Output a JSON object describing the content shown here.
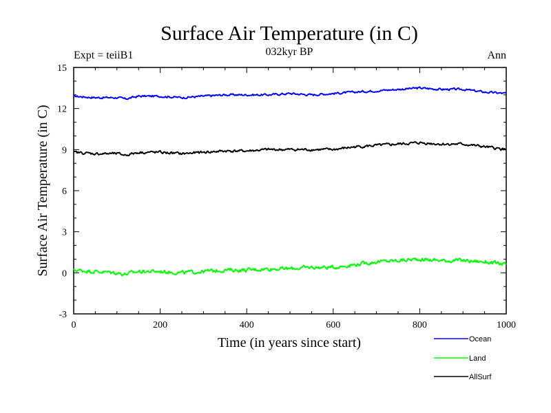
{
  "chart_data": {
    "type": "line",
    "title": "Surface Air Temperature (in C)",
    "subtitle": "032kyr BP",
    "label_left": "Expt = teiiB1",
    "label_right": "Ann",
    "xlabel": "Time (in years since start)",
    "ylabel": "Surface Air Temperature (in C)",
    "xlim": [
      0,
      1000
    ],
    "ylim": [
      -3,
      15
    ],
    "x_ticks": [
      "0",
      "200",
      "400",
      "600",
      "800",
      "1000"
    ],
    "y_ticks": [
      "-3",
      "0",
      "3",
      "6",
      "9",
      "12",
      "15"
    ],
    "grid": false,
    "legend_position": "bottom-right, below plot",
    "series": [
      {
        "name": "Ocean",
        "color": "#0000ff",
        "x": [
          0,
          50,
          100,
          120,
          150,
          200,
          250,
          300,
          350,
          400,
          450,
          500,
          550,
          600,
          650,
          700,
          750,
          800,
          850,
          900,
          950,
          1000
        ],
        "values": [
          12.9,
          12.8,
          12.8,
          12.7,
          12.9,
          12.9,
          12.8,
          12.9,
          13.0,
          13.0,
          13.0,
          13.1,
          13.0,
          13.1,
          13.2,
          13.3,
          13.4,
          13.5,
          13.4,
          13.4,
          13.2,
          13.1
        ]
      },
      {
        "name": "Land",
        "color": "#00ff00",
        "x": [
          0,
          50,
          100,
          120,
          150,
          200,
          250,
          300,
          350,
          400,
          450,
          500,
          550,
          600,
          650,
          700,
          750,
          800,
          850,
          900,
          950,
          1000
        ],
        "values": [
          0.2,
          0.1,
          0.0,
          -0.1,
          0.1,
          0.1,
          0.0,
          0.1,
          0.2,
          0.2,
          0.3,
          0.3,
          0.4,
          0.4,
          0.6,
          0.8,
          0.9,
          1.0,
          0.9,
          0.9,
          0.8,
          0.6
        ]
      },
      {
        "name": "AllSurf",
        "color": "#000000",
        "x": [
          0,
          50,
          100,
          120,
          150,
          200,
          250,
          300,
          350,
          400,
          450,
          500,
          550,
          600,
          650,
          700,
          750,
          800,
          850,
          900,
          950,
          1000
        ],
        "values": [
          8.8,
          8.7,
          8.7,
          8.6,
          8.8,
          8.8,
          8.7,
          8.8,
          8.9,
          8.9,
          9.0,
          9.0,
          9.0,
          9.0,
          9.2,
          9.3,
          9.4,
          9.5,
          9.4,
          9.4,
          9.2,
          9.0
        ]
      }
    ]
  }
}
